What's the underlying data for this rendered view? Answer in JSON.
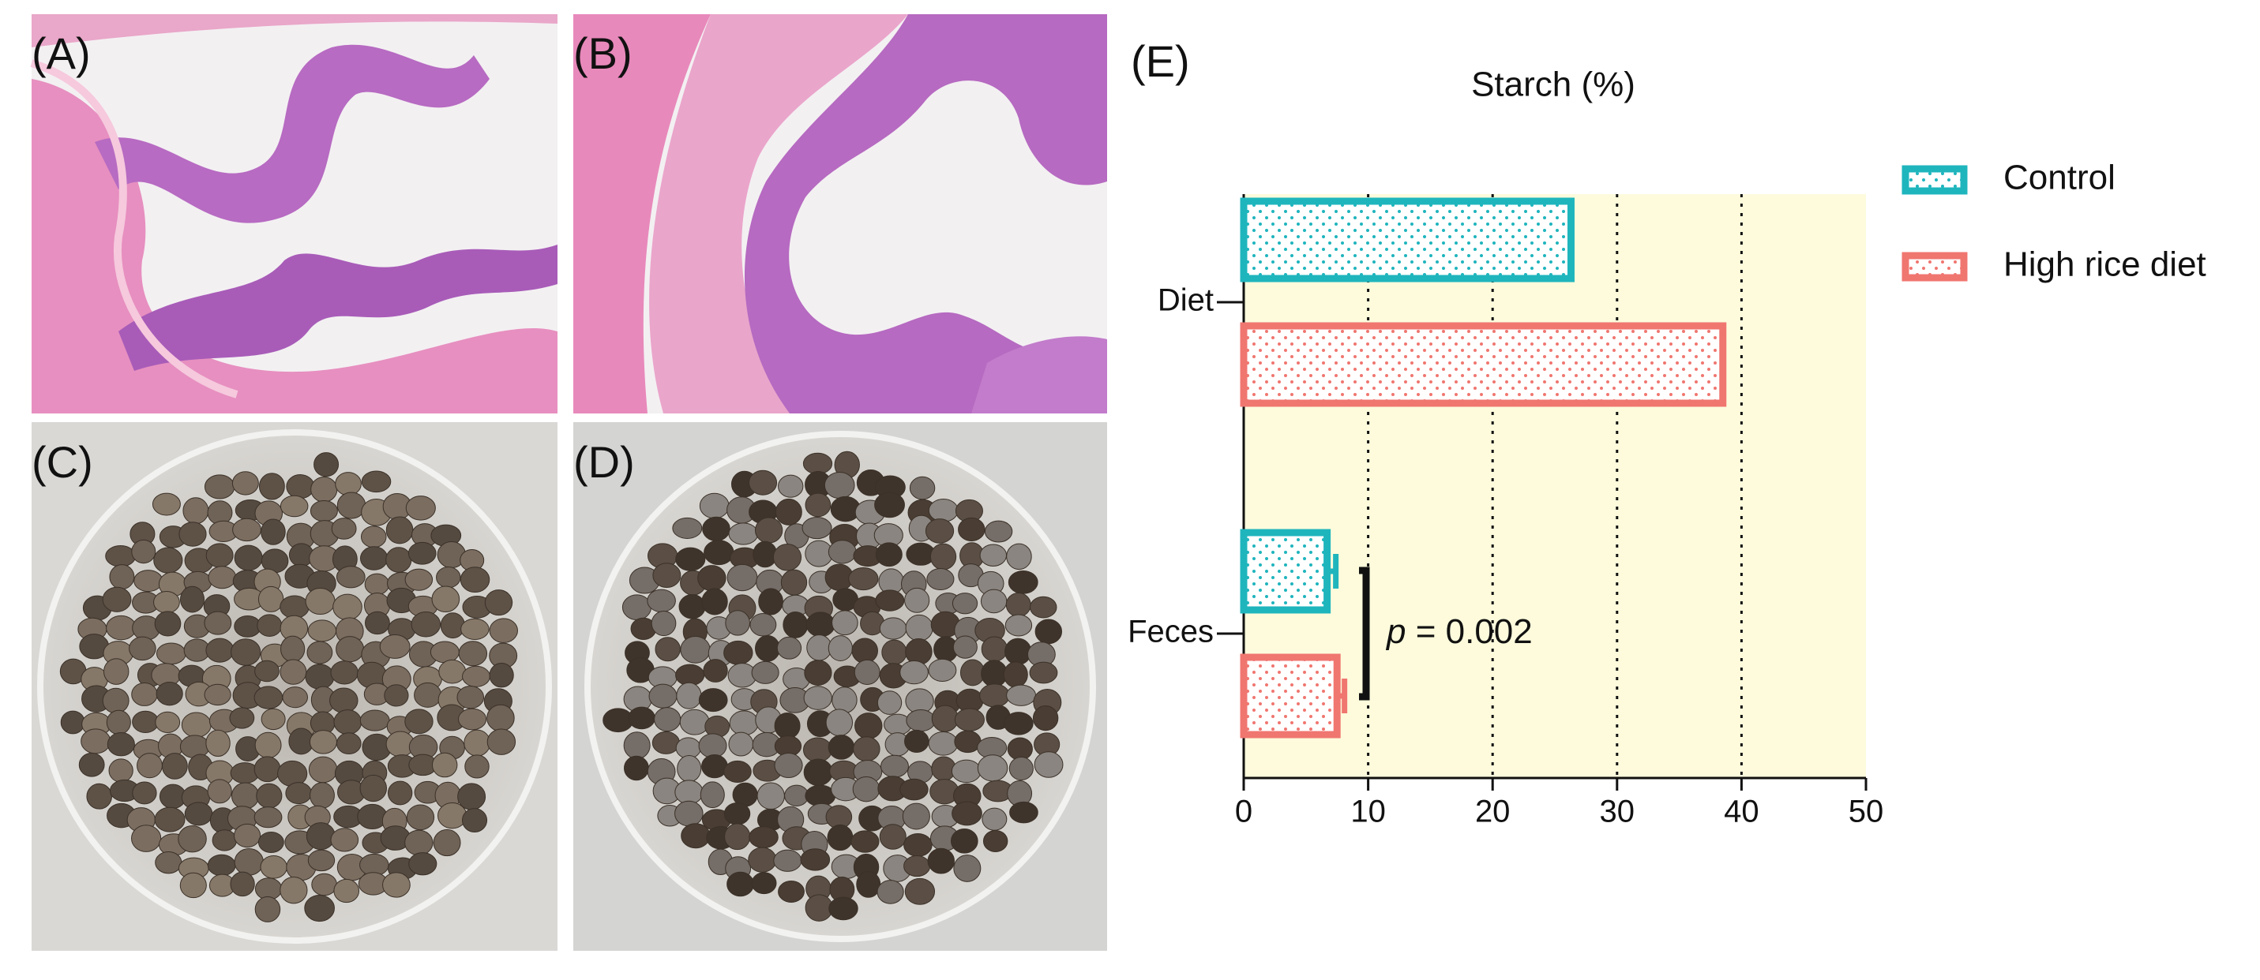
{
  "panels": [
    "(A)",
    "(B)",
    "(C)",
    "(D)",
    "(E)"
  ],
  "chart_data": {
    "type": "hbar",
    "title": "Starch (%)",
    "categories": [
      "Diet",
      "Feces"
    ],
    "series": [
      {
        "name": "Control",
        "color": "#1fb5bd",
        "values": [
          26.3,
          6.7
        ],
        "errors": [
          null,
          0.7
        ]
      },
      {
        "name": "High rice diet",
        "color": "#f07670",
        "values": [
          38.5,
          7.5
        ],
        "errors": [
          null,
          0.6
        ]
      }
    ],
    "xlim": [
      0,
      50
    ],
    "xticks": [
      0,
      10,
      20,
      30,
      40,
      50
    ],
    "grid": true,
    "legend": "right",
    "annotation": {
      "italic": "p",
      "text": " = 0.002"
    }
  }
}
